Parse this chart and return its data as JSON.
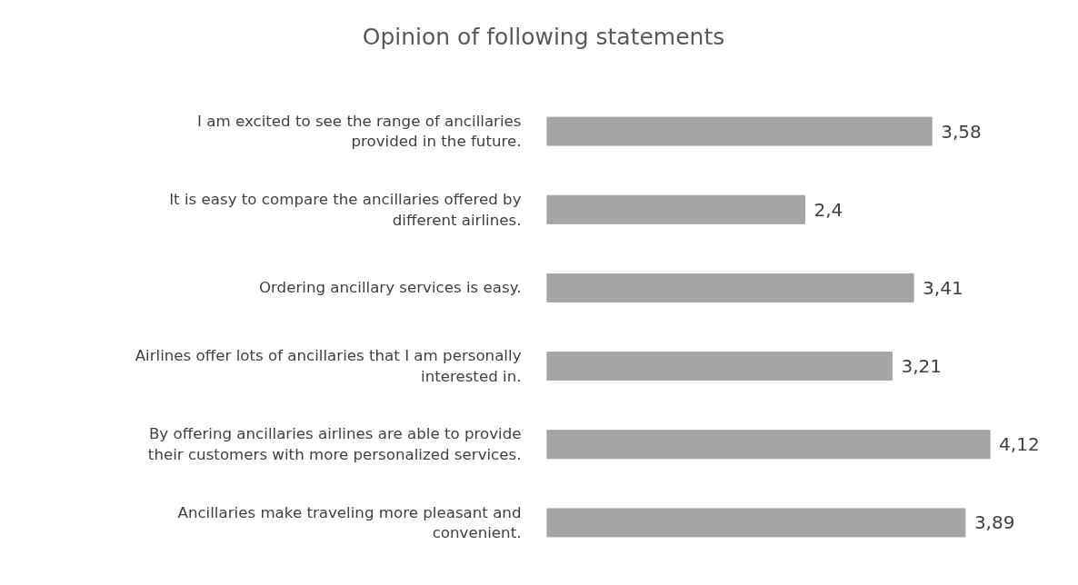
{
  "chart_data": {
    "type": "bar",
    "orientation": "horizontal",
    "title": "Opinion of following statements",
    "categories": [
      "I am excited to see the range of ancillaries\nprovided in the future.",
      "It is easy to compare the ancillaries offered by\ndifferent airlines.",
      "Ordering ancillary services is easy.",
      "Airlines offer lots of ancillaries that I am personally\ninterested in.",
      "By offering ancillaries airlines are able to provide\ntheir customers with more personalized services.",
      "Ancillaries make traveling more pleasant and\nconvenient."
    ],
    "values": [
      3.58,
      2.4,
      3.41,
      3.21,
      4.12,
      3.89
    ],
    "value_labels": [
      "3,58",
      "2,4",
      "3,41",
      "3,21",
      "4,12",
      "3,89"
    ],
    "color": "#a5a5a5",
    "tick_labels": "y"
  }
}
